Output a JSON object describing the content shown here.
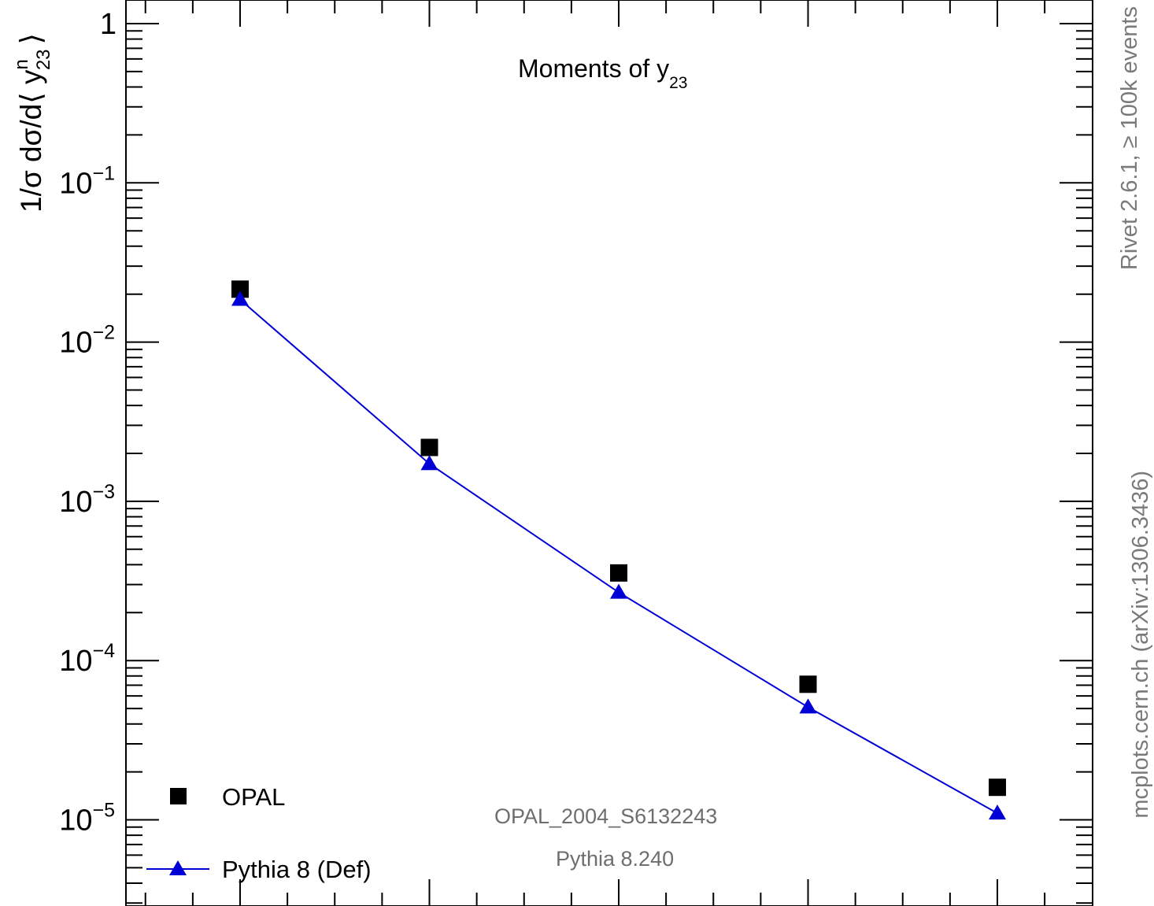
{
  "chart_data": {
    "type": "scatter",
    "title": "Moments of y23",
    "title_main": "Moments of y",
    "title_sub": "23",
    "ylabel": "1/σ dσ/d⟨ y23n ⟩",
    "ylabel_parts": {
      "prefix": "1/σ dσ/d⟨ y",
      "sup": "n",
      "sub": "23",
      "suffix": "⟩"
    },
    "y_scale": "log",
    "ylim": [
      3e-06,
      1.6
    ],
    "xlim": [
      0.4,
      5.5
    ],
    "y_tick_labels": [
      {
        "value": 1,
        "base": "1",
        "exp": ""
      },
      {
        "value": 0.1,
        "base": "10",
        "exp": "−1"
      },
      {
        "value": 0.01,
        "base": "10",
        "exp": "−2"
      },
      {
        "value": 0.001,
        "base": "10",
        "exp": "−3"
      },
      {
        "value": 0.0001,
        "base": "10",
        "exp": "−4"
      },
      {
        "value": 1e-05,
        "base": "10",
        "exp": "−5"
      }
    ],
    "series": [
      {
        "name": "OPAL",
        "marker": "square",
        "color": "#000000",
        "x": [
          1,
          2,
          3,
          4,
          5
        ],
        "y": [
          0.0215,
          0.00218,
          0.000355,
          7.1e-05,
          1.6e-05
        ]
      },
      {
        "name": "Pythia 8 (Def)",
        "marker": "triangle",
        "line": true,
        "color": "#0000d6",
        "x": [
          1,
          2,
          3,
          4,
          5
        ],
        "y": [
          0.0185,
          0.00172,
          0.000268,
          5.1e-05,
          1.1e-05
        ]
      }
    ],
    "legend": {
      "placement": "bottom-left",
      "entries": [
        "OPAL",
        "Pythia 8 (Def)"
      ]
    },
    "annotations": {
      "analysis": "OPAL_2004_S6132243",
      "generator": "Pythia 8.240"
    },
    "side_labels": {
      "rivet": "Rivet 2.6.1, ≥ 100k events",
      "mcplots": "mcplots.cern.ch (arXiv:1306.3436)"
    }
  }
}
